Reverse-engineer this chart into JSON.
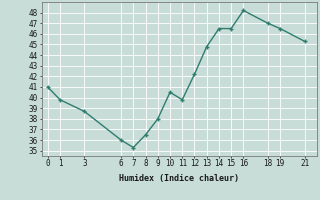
{
  "x": [
    0,
    1,
    3,
    6,
    7,
    8,
    9,
    10,
    11,
    12,
    13,
    14,
    15,
    16,
    18,
    19,
    21
  ],
  "y": [
    41,
    39.8,
    38.7,
    36.0,
    35.3,
    36.5,
    38.0,
    40.5,
    39.8,
    42.2,
    44.8,
    46.5,
    46.5,
    48.2,
    47.0,
    46.5,
    45.3
  ],
  "xlabel": "Humidex (Indice chaleur)",
  "xticks": [
    0,
    1,
    3,
    6,
    7,
    8,
    9,
    10,
    11,
    12,
    13,
    14,
    15,
    16,
    18,
    19,
    21
  ],
  "yticks": [
    35,
    36,
    37,
    38,
    39,
    40,
    41,
    42,
    43,
    44,
    45,
    46,
    47,
    48
  ],
  "ylim": [
    34.5,
    49.0
  ],
  "xlim": [
    -0.5,
    22.0
  ],
  "line_color": "#2e7d6e",
  "bg_color": "#c8ddd8",
  "grid_color": "#ffffff",
  "font_color": "#1a1a1a",
  "font_family": "monospace",
  "xlabel_fontsize": 6.0,
  "tick_fontsize": 5.5,
  "linewidth": 1.0,
  "markersize": 2.5
}
